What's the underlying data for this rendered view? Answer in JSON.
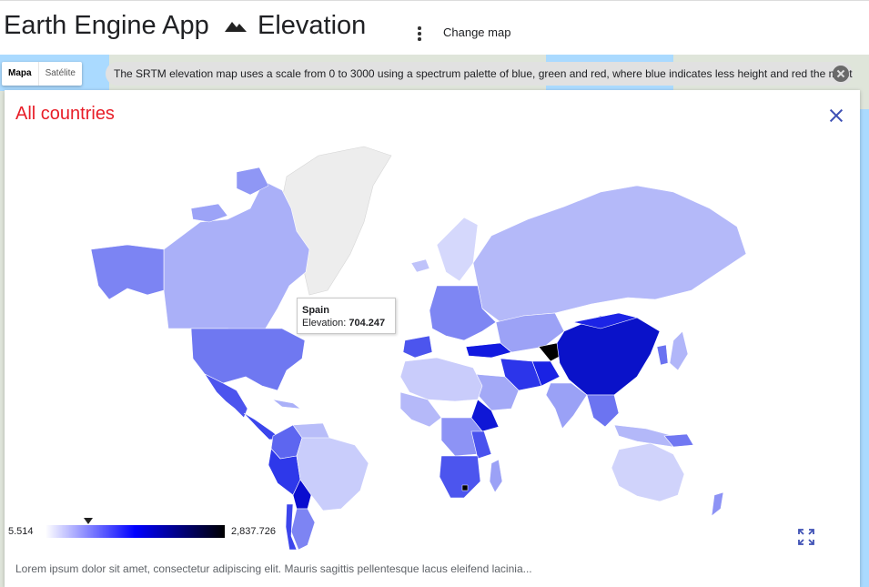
{
  "header": {
    "app_title": "Earth Engine App",
    "title_icon": "terrain-icon",
    "page_title": "Elevation",
    "menu_icon": "more-vert-icon",
    "change_map_label": "Change map"
  },
  "map_controls": {
    "map_type_options": [
      "Mapa",
      "Satélite"
    ],
    "selected_map_type": "Mapa"
  },
  "info_banner": {
    "text": "The SRTM elevation map uses a scale from 0 to 3000 using a spectrum palette of blue, green and red, where blue indicates less height and red the most",
    "close_icon": "cancel-icon"
  },
  "card": {
    "title": "All countries",
    "close_icon": "close-icon",
    "fullscreen_icon": "fullscreen-icon",
    "description": "Lorem ipsum dolor sit amet, consectetur adipiscing elit. Mauris sagittis pellentesque lacus eleifend lacinia..."
  },
  "geo_chart": {
    "tooltip": {
      "country": "Spain",
      "metric_label": "Elevation:",
      "metric_value": "704.247"
    },
    "color_axis": {
      "min_label": "5.514",
      "max_label": "2,837.726",
      "colors": [
        "#ffffff",
        "#0000ff",
        "#000000"
      ],
      "no_data_color": "#f0f0f0",
      "marker_value": 704.247
    }
  },
  "colors": {
    "card_title": "#e81e28",
    "close_icon": "#3f51b5"
  }
}
